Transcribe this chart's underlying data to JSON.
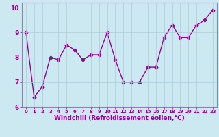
{
  "x": [
    0,
    1,
    2,
    3,
    4,
    5,
    6,
    7,
    8,
    9,
    10,
    11,
    12,
    13,
    14,
    15,
    16,
    17,
    18,
    19,
    20,
    21,
    22,
    23
  ],
  "y": [
    9.0,
    6.4,
    6.8,
    8.0,
    7.9,
    8.5,
    8.3,
    7.9,
    8.1,
    8.1,
    9.0,
    7.9,
    7.0,
    7.0,
    7.0,
    7.6,
    7.6,
    8.8,
    9.3,
    8.8,
    8.8,
    9.3,
    9.5,
    9.9
  ],
  "line_color": "#990099",
  "marker": "D",
  "markersize": 2.5,
  "linewidth": 1.0,
  "xlabel": "Windchill (Refroidissement éolien,°C)",
  "xlabel_fontsize": 6.5,
  "xlabel_color": "#990099",
  "xlabel_bold": true,
  "xlim": [
    -0.5,
    23.5
  ],
  "ylim": [
    6.0,
    10.2
  ],
  "yticks": [
    6,
    7,
    8,
    9,
    10
  ],
  "xticks": [
    0,
    1,
    2,
    3,
    4,
    5,
    6,
    7,
    8,
    9,
    10,
    11,
    12,
    13,
    14,
    15,
    16,
    17,
    18,
    19,
    20,
    21,
    22,
    23
  ],
  "xtick_fontsize": 5.0,
  "ytick_fontsize": 6.5,
  "background_color": "#cce8f0",
  "grid_color": "#aaccdd",
  "grid_linewidth": 0.5,
  "tick_label_color": "#990099",
  "spine_color": "#8888aa",
  "figure_bg": "#cce8f0"
}
